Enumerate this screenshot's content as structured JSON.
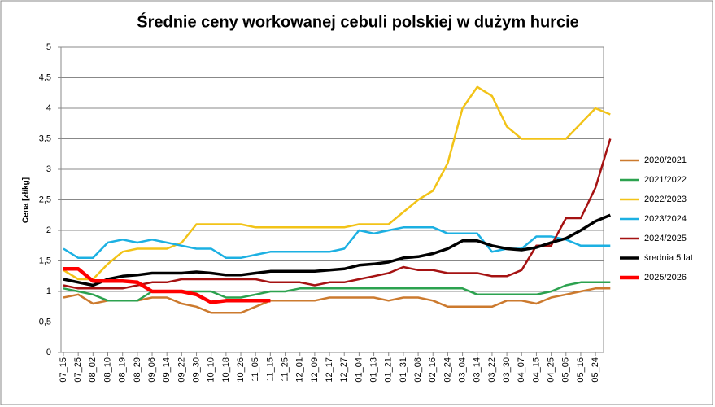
{
  "chart_data": {
    "type": "line",
    "title": "Średnie ceny workowanej cebuli polskiej w dużym hurcie",
    "y_label": "Cena [zł/kg]",
    "categories": [
      "07_15",
      "07_25",
      "08_02",
      "08_10",
      "08_19",
      "08_29",
      "09_06",
      "09_14",
      "09_22",
      "09_30",
      "10_10",
      "10_18",
      "10_26",
      "11_05",
      "11_15",
      "11_25",
      "12_01",
      "12_09",
      "12_17",
      "12_27",
      "01_04",
      "01_13",
      "01_21",
      "01_31",
      "02_08",
      "02_16",
      "02_24",
      "03_04",
      "03_14",
      "03_22",
      "03_30",
      "04_07",
      "04_15",
      "04_25",
      "05_05",
      "05_16",
      "05_24",
      null
    ],
    "ylim": [
      0,
      5
    ],
    "yticks": [
      0,
      {
        "value": 0.5,
        "label": "0,5"
      },
      1,
      {
        "value": 1.5,
        "label": "1,5"
      },
      2,
      {
        "value": 2.5,
        "label": "2,5"
      },
      3,
      {
        "value": 3.5,
        "label": "3,5"
      },
      4,
      {
        "value": 4.5,
        "label": "4,5"
      },
      5
    ],
    "grid": true,
    "legend": "right",
    "series": [
      {
        "name": "2020/2021",
        "color": "#cc7a2e",
        "values": [
          0.9,
          0.95,
          0.8,
          0.85,
          0.85,
          0.85,
          0.9,
          0.9,
          0.8,
          0.75,
          0.65,
          0.65,
          0.65,
          0.75,
          0.85,
          0.85,
          0.85,
          0.85,
          0.9,
          0.9,
          0.9,
          0.9,
          0.85,
          0.9,
          0.9,
          0.85,
          0.75,
          0.75,
          0.75,
          0.75,
          0.85,
          0.85,
          0.8,
          0.9,
          0.95,
          1.0,
          1.05,
          1.05
        ]
      },
      {
        "name": "2021/2022",
        "color": "#2ca24f",
        "values": [
          1.05,
          1.0,
          0.95,
          0.85,
          0.85,
          0.85,
          1.0,
          1.0,
          1.0,
          1.0,
          1.0,
          0.9,
          0.9,
          0.95,
          1.0,
          1.0,
          1.05,
          1.05,
          1.05,
          1.05,
          1.05,
          1.05,
          1.05,
          1.05,
          1.05,
          1.05,
          1.05,
          1.05,
          0.95,
          0.95,
          0.95,
          0.95,
          0.95,
          1.0,
          1.1,
          1.15,
          1.15,
          1.15
        ]
      },
      {
        "name": "2022/2023",
        "color": "#f2c318",
        "values": [
          1.35,
          1.2,
          1.2,
          1.45,
          1.65,
          1.7,
          1.7,
          1.7,
          1.8,
          2.1,
          2.1,
          2.1,
          2.1,
          2.05,
          2.05,
          2.05,
          2.05,
          2.05,
          2.05,
          2.05,
          2.1,
          2.1,
          2.1,
          2.3,
          2.5,
          2.65,
          3.1,
          4.0,
          4.35,
          4.2,
          3.7,
          3.5,
          3.5,
          3.5,
          3.5,
          3.75,
          4.0,
          3.9
        ]
      },
      {
        "name": "2023/2024",
        "color": "#1cb0e2",
        "values": [
          1.7,
          1.55,
          1.55,
          1.8,
          1.85,
          1.8,
          1.85,
          1.8,
          1.75,
          1.7,
          1.7,
          1.55,
          1.55,
          1.6,
          1.65,
          1.65,
          1.65,
          1.65,
          1.65,
          1.7,
          2.0,
          1.95,
          2.0,
          2.05,
          2.05,
          2.05,
          1.95,
          1.95,
          1.95,
          1.65,
          1.7,
          1.7,
          1.9,
          1.9,
          1.85,
          1.75,
          1.75,
          1.75
        ]
      },
      {
        "name": "2024/2025",
        "color": "#a51212",
        "values": [
          1.1,
          1.05,
          1.05,
          1.05,
          1.05,
          1.1,
          1.15,
          1.15,
          1.2,
          1.2,
          1.2,
          1.2,
          1.2,
          1.2,
          1.15,
          1.15,
          1.15,
          1.1,
          1.15,
          1.15,
          1.2,
          1.25,
          1.3,
          1.4,
          1.35,
          1.35,
          1.3,
          1.3,
          1.3,
          1.25,
          1.25,
          1.35,
          1.75,
          1.75,
          2.2,
          2.2,
          2.7,
          3.5
        ]
      },
      {
        "name": "średnia 5 lat",
        "color": "#000000",
        "values": [
          1.2,
          1.15,
          1.1,
          1.2,
          1.25,
          1.27,
          1.3,
          1.3,
          1.3,
          1.32,
          1.3,
          1.27,
          1.27,
          1.3,
          1.33,
          1.33,
          1.33,
          1.33,
          1.35,
          1.37,
          1.43,
          1.45,
          1.48,
          1.55,
          1.57,
          1.62,
          1.7,
          1.83,
          1.83,
          1.75,
          1.7,
          1.68,
          1.72,
          1.8,
          1.87,
          2.0,
          2.15,
          2.25
        ]
      },
      {
        "name": "2025/2026",
        "color": "#ff0000",
        "values": [
          1.37,
          1.37,
          1.17,
          1.17,
          1.17,
          1.15,
          1.0,
          1.0,
          1.0,
          0.95,
          0.82,
          0.85,
          0.85,
          0.85,
          0.85,
          null,
          null,
          null,
          null,
          null,
          null,
          null,
          null,
          null,
          null,
          null,
          null,
          null,
          null,
          null,
          null,
          null,
          null,
          null,
          null,
          null,
          null,
          null
        ]
      }
    ]
  }
}
